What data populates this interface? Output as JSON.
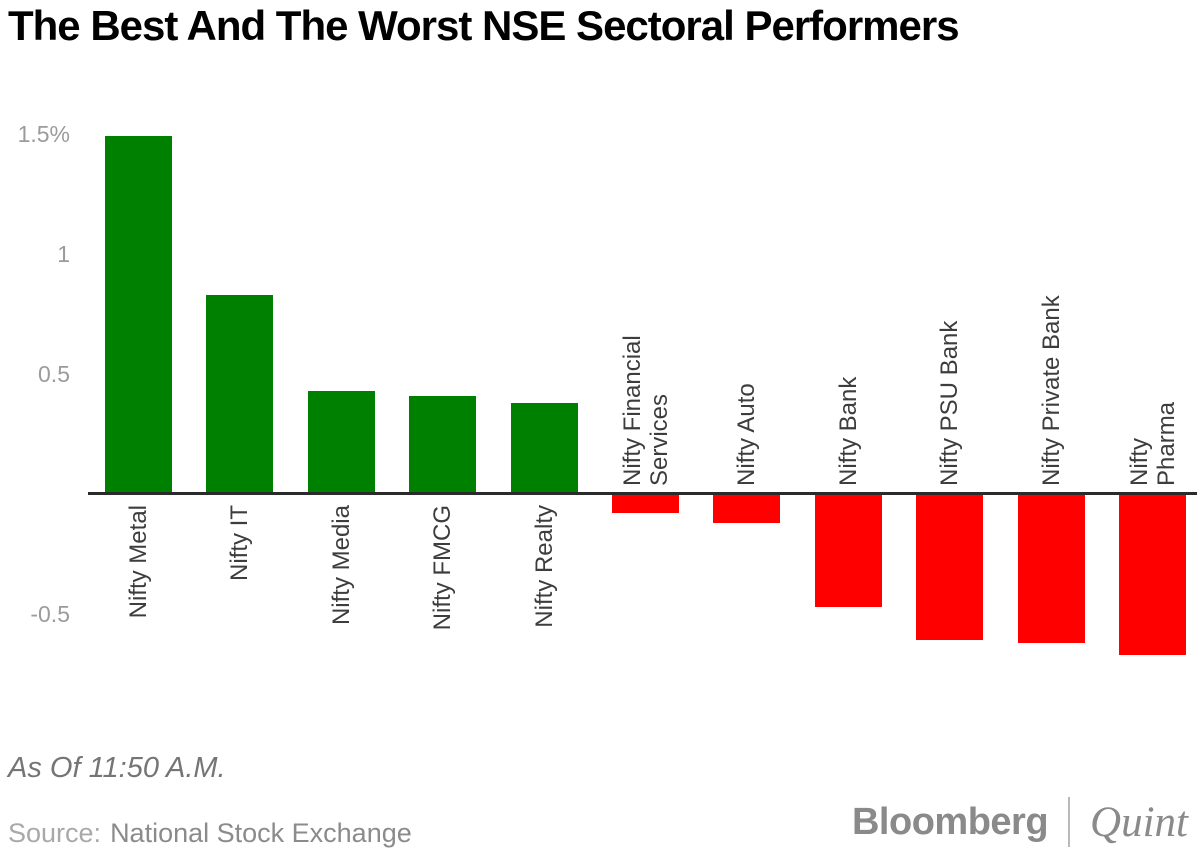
{
  "chart_data": {
    "type": "bar",
    "title": "The Best And The Worst NSE Sectoral Performers",
    "categories": [
      "Nifty Metal",
      "Nifty IT",
      "Nifty Media",
      "Nifty FMCG",
      "Nifty Realty",
      "Nifty Financial\nServices",
      "Nifty Auto",
      "Nifty Bank",
      "Nifty PSU Bank",
      "Nifty Private Bank",
      "Nifty\nPharma"
    ],
    "values": [
      1.49,
      0.83,
      0.43,
      0.41,
      0.38,
      -0.08,
      -0.12,
      -0.47,
      -0.61,
      -0.62,
      -0.67
    ],
    "unit": "%",
    "xlabel": "",
    "ylabel": "",
    "ytick_labels": [
      "1.5%",
      "1",
      "0.5",
      "-0.5"
    ],
    "ytick_values": [
      1.5,
      1,
      0.5,
      -0.5
    ],
    "ylim": [
      -0.8,
      1.65
    ],
    "grid": false,
    "legend": "none",
    "positive_color": "#008000",
    "negative_color": "#ff0000",
    "axis_color": "#2b2b2b",
    "label_color": "#3d3d3d",
    "tick_color": "#9b9b9b"
  },
  "footer": {
    "as_of": "As Of 11:50 A.M.",
    "source_label": "Source:",
    "source_value": "National Stock Exchange",
    "brand": {
      "bloomberg": "Bloomberg",
      "quint": "Quint"
    }
  }
}
